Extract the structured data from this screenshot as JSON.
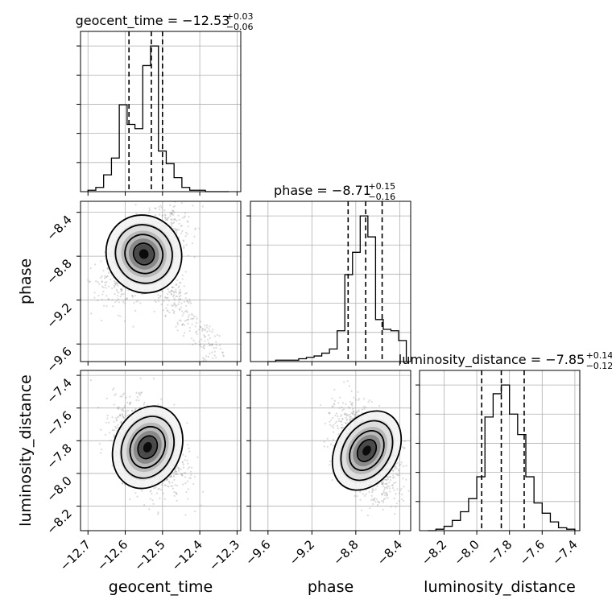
{
  "chart_data": {
    "type": "corner",
    "parameters": [
      "geocent_time",
      "phase",
      "luminosity_distance"
    ],
    "titles": [
      {
        "param": "geocent_time",
        "label": "geocent_time = ",
        "median": "−12.53",
        "plus": "+0.03",
        "minus": "−0.06"
      },
      {
        "param": "phase",
        "label": "phase = ",
        "median": "−8.71",
        "plus": "+0.15",
        "minus": "−0.16"
      },
      {
        "param": "luminosity_distance",
        "label": "luminosity_distance = ",
        "median": "−7.85",
        "plus": "+0.14",
        "minus": "−0.12"
      }
    ],
    "axes": {
      "geocent_time": {
        "lim": [
          -12.72,
          -12.29
        ],
        "ticks": [
          -12.7,
          -12.6,
          -12.5,
          -12.4,
          -12.3
        ],
        "tick_labels": [
          "−12.7",
          "−12.6",
          "−12.5",
          "−12.4",
          "−12.3"
        ],
        "quantiles": [
          -12.59,
          -12.53,
          -12.5
        ]
      },
      "phase": {
        "lim": [
          -9.76,
          -8.3
        ],
        "ticks": [
          -9.6,
          -9.2,
          -8.8,
          -8.4
        ],
        "tick_labels": [
          "−9.6",
          "−9.2",
          "−8.8",
          "−8.4"
        ],
        "quantiles": [
          -8.87,
          -8.71,
          -8.56
        ]
      },
      "luminosity_distance": {
        "lim": [
          -8.35,
          -7.37
        ],
        "ticks": [
          -8.2,
          -8.0,
          -7.8,
          -7.6,
          -7.4
        ],
        "tick_labels": [
          "−8.2",
          "−8.0",
          "−7.8",
          "−7.6",
          "−7.4"
        ],
        "quantiles": [
          -7.97,
          -7.85,
          -7.71
        ]
      }
    },
    "histograms": {
      "geocent_time": {
        "edges": [
          -12.7,
          -12.679,
          -12.658,
          -12.637,
          -12.616,
          -12.595,
          -12.574,
          -12.553,
          -12.532,
          -12.511,
          -12.49,
          -12.469,
          -12.448,
          -12.427,
          -12.406,
          -12.385,
          -12.364,
          -12.343,
          -12.322
        ],
        "counts": [
          1,
          3,
          12,
          24,
          62,
          48,
          45,
          90,
          104,
          29,
          20,
          10,
          3,
          1,
          1,
          0,
          0,
          0
        ]
      },
      "phase": {
        "edges": [
          -9.6,
          -9.53,
          -9.46,
          -9.39,
          -9.32,
          -9.25,
          -9.18,
          -9.11,
          -9.04,
          -8.97,
          -8.9,
          -8.83,
          -8.76,
          -8.69,
          -8.62,
          -8.55,
          -8.48,
          -8.41,
          -8.34
        ],
        "counts": [
          0,
          1,
          1,
          1,
          2,
          3,
          4,
          6,
          9,
          22,
          62,
          78,
          104,
          89,
          30,
          23,
          22,
          15
        ]
      },
      "luminosity_distance": {
        "edges": [
          -8.3,
          -8.25,
          -8.2,
          -8.15,
          -8.1,
          -8.05,
          -8.0,
          -7.95,
          -7.9,
          -7.85,
          -7.8,
          -7.75,
          -7.7,
          -7.65,
          -7.6,
          -7.55,
          -7.5,
          -7.45,
          -7.4
        ],
        "counts": [
          0,
          1,
          3,
          7,
          13,
          22,
          37,
          78,
          94,
          100,
          80,
          66,
          37,
          19,
          12,
          6,
          2,
          1
        ]
      }
    },
    "quantile_line_style": "dashed",
    "grid": true,
    "scatter_color": "#999999",
    "line_color": "#000000"
  }
}
